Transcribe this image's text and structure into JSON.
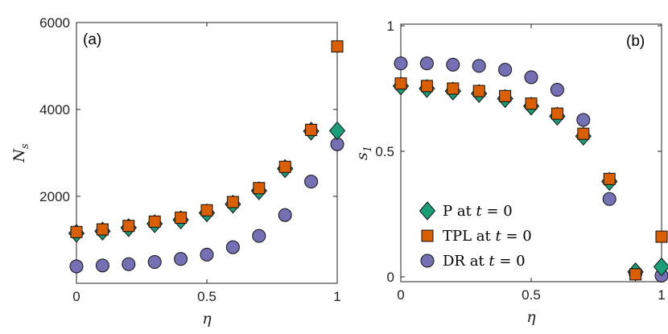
{
  "colors": {
    "P": "#1a9e77",
    "TPL": "#d95f02",
    "DR": "#7570b3",
    "edge": "#111111"
  },
  "chart_data": [
    {
      "type": "scatter",
      "panel_label": "(a)",
      "xlabel": "η",
      "ylabel_main": "N",
      "ylabel_sub": "s",
      "xlim": [
        0,
        1
      ],
      "ylim": [
        0,
        6000
      ],
      "x_ticks": [
        0,
        0.5,
        1
      ],
      "x_tick_labels": [
        "0",
        "0.5",
        "1"
      ],
      "y_ticks": [
        2000,
        4000,
        6000
      ],
      "y_tick_labels": [
        "2000",
        "4000",
        "6000"
      ],
      "x": [
        0,
        0.1,
        0.2,
        0.3,
        0.4,
        0.5,
        0.6,
        0.7,
        0.8,
        0.9,
        1
      ],
      "series": [
        {
          "name": "P at t = 0",
          "key": "P",
          "marker": "diamond",
          "values": [
            1150,
            1200,
            1280,
            1370,
            1460,
            1620,
            1820,
            2130,
            2640,
            3500,
            3510
          ]
        },
        {
          "name": "TPL at t = 0",
          "key": "TPL",
          "marker": "square",
          "values": [
            1180,
            1240,
            1320,
            1420,
            1510,
            1680,
            1870,
            2190,
            2680,
            3530,
            5450
          ]
        },
        {
          "name": "DR at t = 0",
          "key": "DR",
          "marker": "circle",
          "values": [
            390,
            410,
            440,
            490,
            560,
            660,
            830,
            1090,
            1570,
            2340,
            3200
          ]
        }
      ]
    },
    {
      "type": "scatter",
      "panel_label": "(b)",
      "xlabel": "η",
      "ylabel_main": "s",
      "ylabel_sub": "1",
      "xlim": [
        0,
        1
      ],
      "ylim": [
        0,
        1
      ],
      "x_ticks": [
        0,
        0.5,
        1
      ],
      "x_tick_labels": [
        "0",
        "0.5",
        "1"
      ],
      "y_ticks": [
        0,
        0.5,
        1
      ],
      "y_tick_labels": [
        "0",
        "0.5",
        "1"
      ],
      "x": [
        0,
        0.1,
        0.2,
        0.3,
        0.4,
        0.5,
        0.6,
        0.7,
        0.8,
        0.9,
        1
      ],
      "series": [
        {
          "name": "P at t = 0",
          "key": "P",
          "marker": "diamond",
          "values": [
            0.76,
            0.75,
            0.74,
            0.73,
            0.71,
            0.68,
            0.64,
            0.56,
            0.38,
            0.02,
            0.04
          ]
        },
        {
          "name": "TPL at t = 0",
          "key": "TPL",
          "marker": "square",
          "values": [
            0.77,
            0.76,
            0.75,
            0.74,
            0.72,
            0.69,
            0.65,
            0.57,
            0.39,
            0.01,
            0.16
          ]
        },
        {
          "name": "DR at t = 0",
          "key": "DR",
          "marker": "circle",
          "values": [
            0.85,
            0.85,
            0.845,
            0.84,
            0.825,
            0.795,
            0.745,
            0.625,
            0.31,
            0.015,
            0.005
          ]
        }
      ],
      "legend": {
        "placement": "bottom-left",
        "entries": [
          {
            "key": "P",
            "marker": "diamond",
            "label": "P at",
            "var": "t",
            "rest": " = 0"
          },
          {
            "key": "TPL",
            "marker": "square",
            "label": "TPL at",
            "var": "t",
            "rest": " = 0"
          },
          {
            "key": "DR",
            "marker": "circle",
            "label": "DR at",
            "var": "t",
            "rest": " = 0"
          }
        ]
      }
    }
  ]
}
